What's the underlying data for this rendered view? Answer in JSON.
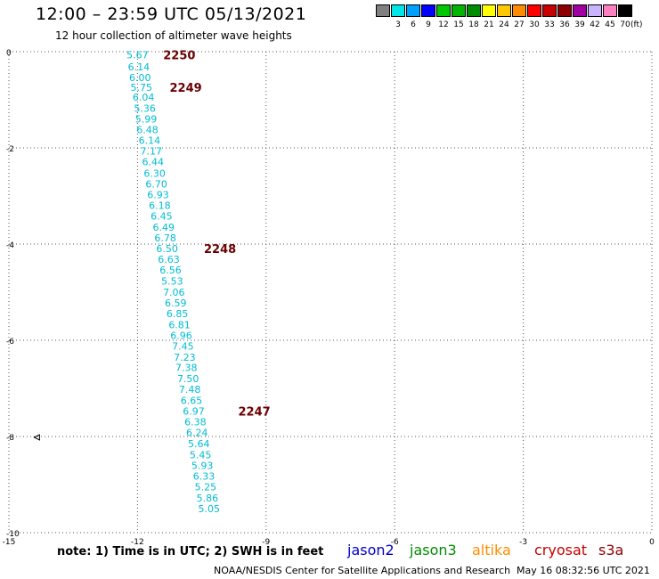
{
  "header": {
    "title": "12:00 – 23:59 UTC 05/13/2021",
    "subtitle": "12 hour collection of altimeter wave heights"
  },
  "legend": {
    "unit": "(ft)",
    "items": [
      {
        "label": "3",
        "color": "#808080"
      },
      {
        "label": "6",
        "color": "#00e6e6"
      },
      {
        "label": "9",
        "color": "#00a0ff"
      },
      {
        "label": "12",
        "color": "#0000ff"
      },
      {
        "label": "15",
        "color": "#00c800"
      },
      {
        "label": "18",
        "color": "#00b400"
      },
      {
        "label": "21",
        "color": "#008c00"
      },
      {
        "label": "24",
        "color": "#ffff00"
      },
      {
        "label": "27",
        "color": "#ffc800"
      },
      {
        "label": "30",
        "color": "#ff8c00"
      },
      {
        "label": "33",
        "color": "#ff0000"
      },
      {
        "label": "36",
        "color": "#c80000"
      },
      {
        "label": "39",
        "color": "#8c0000"
      },
      {
        "label": "42",
        "color": "#a000a0"
      },
      {
        "label": "45",
        "color": "#c8b4ff"
      },
      {
        "label": "70",
        "color": "#ff80c0"
      },
      {
        "label": "",
        "color": "#000000"
      }
    ]
  },
  "note": "note: 1) Time is in UTC; 2) SWH is in feet",
  "satellites": [
    {
      "label": "jason2",
      "color": "#0000c8"
    },
    {
      "label": "jason3",
      "color": "#008c00"
    },
    {
      "label": "altika",
      "color": "#ff8c00"
    },
    {
      "label": "cryosat",
      "color": "#c80000"
    },
    {
      "label": "s3a",
      "color": "#8c0000"
    }
  ],
  "footer": {
    "center": "NOAA/NESDIS Center for Satellite Applications and Research",
    "timestamp": "May 16 08:32:56 UTC 2021"
  },
  "chart_data": {
    "type": "scatter",
    "xlim": [
      -15,
      0
    ],
    "ylim": [
      -10,
      0
    ],
    "xticks": [
      -15,
      -12,
      -9,
      -6,
      -3,
      0
    ],
    "yticks": [
      0,
      -2,
      -4,
      -6,
      -8,
      -10
    ],
    "grid": true,
    "point_color": "#00bcd4",
    "time_color": "#6b0000",
    "points": [
      {
        "x": -12.0,
        "y": -0.05,
        "v": "5.67"
      },
      {
        "x": -11.97,
        "y": -0.3,
        "v": "6.14"
      },
      {
        "x": -11.94,
        "y": -0.52,
        "v": "6.00"
      },
      {
        "x": -11.91,
        "y": -0.72,
        "v": "5.75"
      },
      {
        "x": -11.86,
        "y": -0.93,
        "v": "6.04"
      },
      {
        "x": -11.83,
        "y": -1.16,
        "v": "5.36"
      },
      {
        "x": -11.8,
        "y": -1.38,
        "v": "5.99"
      },
      {
        "x": -11.77,
        "y": -1.6,
        "v": "6.48"
      },
      {
        "x": -11.72,
        "y": -1.82,
        "v": "6.14"
      },
      {
        "x": -11.68,
        "y": -2.05,
        "v": "7.17"
      },
      {
        "x": -11.64,
        "y": -2.27,
        "v": "6.44"
      },
      {
        "x": -11.6,
        "y": -2.51,
        "v": "6.30"
      },
      {
        "x": -11.56,
        "y": -2.73,
        "v": "6.70"
      },
      {
        "x": -11.52,
        "y": -2.95,
        "v": "6.93"
      },
      {
        "x": -11.48,
        "y": -3.18,
        "v": "6.18"
      },
      {
        "x": -11.44,
        "y": -3.4,
        "v": "6.45"
      },
      {
        "x": -11.39,
        "y": -3.63,
        "v": "6.49"
      },
      {
        "x": -11.35,
        "y": -3.85,
        "v": "6.78"
      },
      {
        "x": -11.31,
        "y": -4.07,
        "v": "6.50"
      },
      {
        "x": -11.27,
        "y": -4.3,
        "v": "6.63"
      },
      {
        "x": -11.23,
        "y": -4.52,
        "v": "6.56"
      },
      {
        "x": -11.19,
        "y": -4.75,
        "v": "5.53"
      },
      {
        "x": -11.15,
        "y": -4.98,
        "v": "7.06"
      },
      {
        "x": -11.11,
        "y": -5.2,
        "v": "6.59"
      },
      {
        "x": -11.07,
        "y": -5.43,
        "v": "6.85"
      },
      {
        "x": -11.02,
        "y": -5.66,
        "v": "6.81"
      },
      {
        "x": -10.98,
        "y": -5.88,
        "v": "6.96"
      },
      {
        "x": -10.94,
        "y": -6.1,
        "v": "7.45"
      },
      {
        "x": -10.9,
        "y": -6.33,
        "v": "7.23"
      },
      {
        "x": -10.86,
        "y": -6.55,
        "v": "7.38"
      },
      {
        "x": -10.82,
        "y": -6.78,
        "v": "7.50"
      },
      {
        "x": -10.78,
        "y": -7.0,
        "v": "7.48"
      },
      {
        "x": -10.74,
        "y": -7.23,
        "v": "6.65"
      },
      {
        "x": -10.69,
        "y": -7.45,
        "v": "6.97"
      },
      {
        "x": -10.65,
        "y": -7.68,
        "v": "6.38"
      },
      {
        "x": -10.61,
        "y": -7.9,
        "v": "6.24"
      },
      {
        "x": -10.57,
        "y": -8.13,
        "v": "5.64"
      },
      {
        "x": -10.53,
        "y": -8.36,
        "v": "5.45"
      },
      {
        "x": -10.49,
        "y": -8.58,
        "v": "5.93"
      },
      {
        "x": -10.45,
        "y": -8.81,
        "v": "6.33"
      },
      {
        "x": -10.41,
        "y": -9.03,
        "v": "5.25"
      },
      {
        "x": -10.37,
        "y": -9.26,
        "v": "5.86"
      },
      {
        "x": -10.33,
        "y": -9.48,
        "v": "5.05"
      }
    ],
    "time_labels": [
      {
        "x": -11.4,
        "y": -0.05,
        "text": "2250"
      },
      {
        "x": -11.25,
        "y": -0.72,
        "text": "2249"
      },
      {
        "x": -10.45,
        "y": -4.07,
        "text": "2248"
      },
      {
        "x": -9.65,
        "y": -7.45,
        "text": "2247"
      }
    ]
  }
}
